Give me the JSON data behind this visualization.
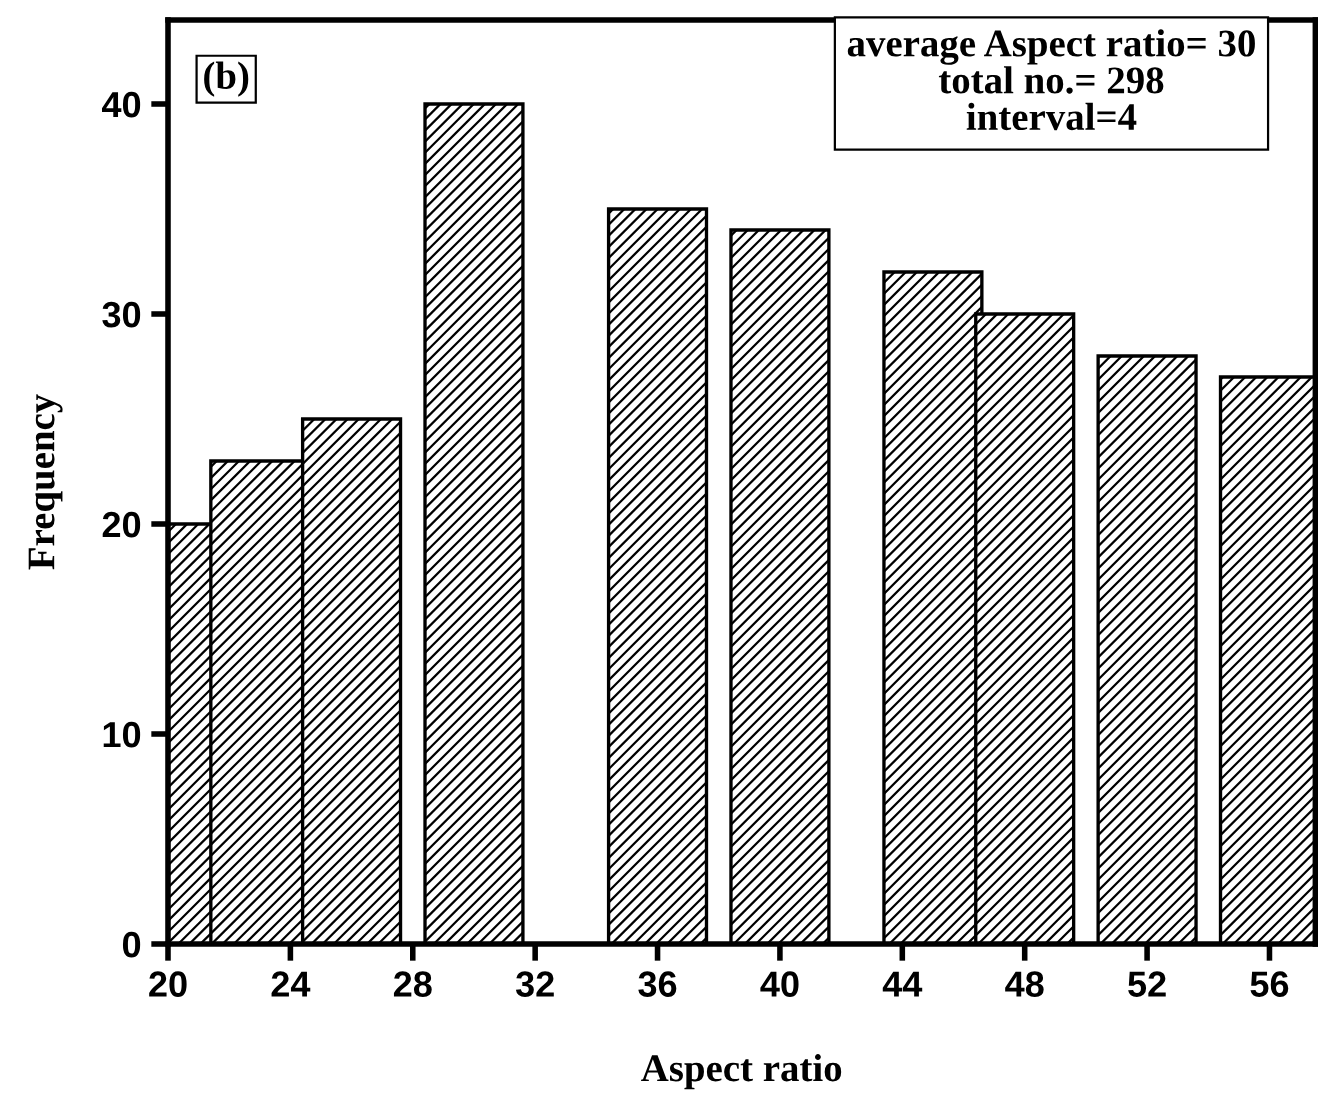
{
  "chart_data": {
    "type": "bar",
    "xlabel": "Aspect ratio",
    "ylabel": "Frequency",
    "x": [
      20,
      23,
      26,
      30,
      36,
      40,
      45,
      48,
      52,
      56
    ],
    "values": [
      20,
      23,
      25,
      40,
      35,
      34,
      32,
      30,
      28,
      27
    ],
    "color": "#000000",
    "xlim": [
      20,
      57.5
    ],
    "xticks": [
      20,
      24,
      28,
      32,
      36,
      40,
      44,
      48,
      52,
      56
    ],
    "ylim": [
      0,
      44
    ],
    "yticks": [
      0,
      10,
      20,
      30,
      40
    ],
    "grid": false,
    "legend": false,
    "annotations": [
      "(b)",
      "average Aspect ratio= 30\ntotal no.= 298\ninterval=4"
    ]
  }
}
